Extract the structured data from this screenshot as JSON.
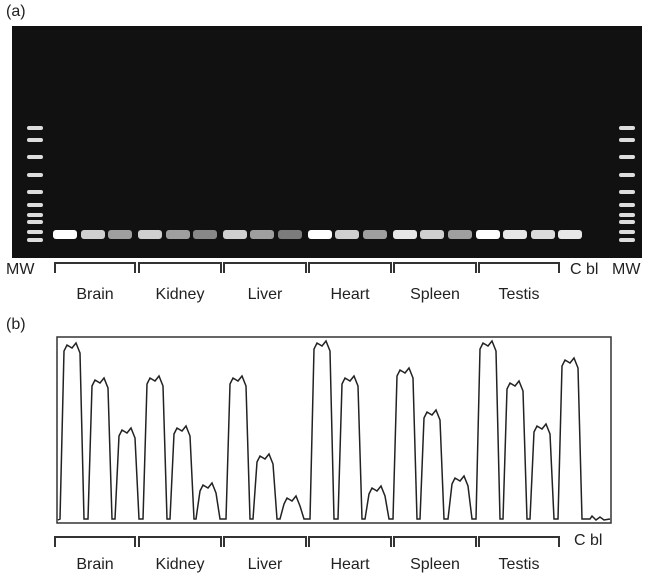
{
  "panel_a": {
    "label": "(a)",
    "mw_left": "MW",
    "groups": [
      "Brain",
      "Kidney",
      "Liver",
      "Heart",
      "Spleen",
      "Testis"
    ],
    "control": "C bl",
    "mw_right": "MW"
  },
  "panel_b": {
    "label": "(b)",
    "groups": [
      "Brain",
      "Kidney",
      "Liver",
      "Heart",
      "Spleen",
      "Testis"
    ],
    "control": "C bl"
  }
}
